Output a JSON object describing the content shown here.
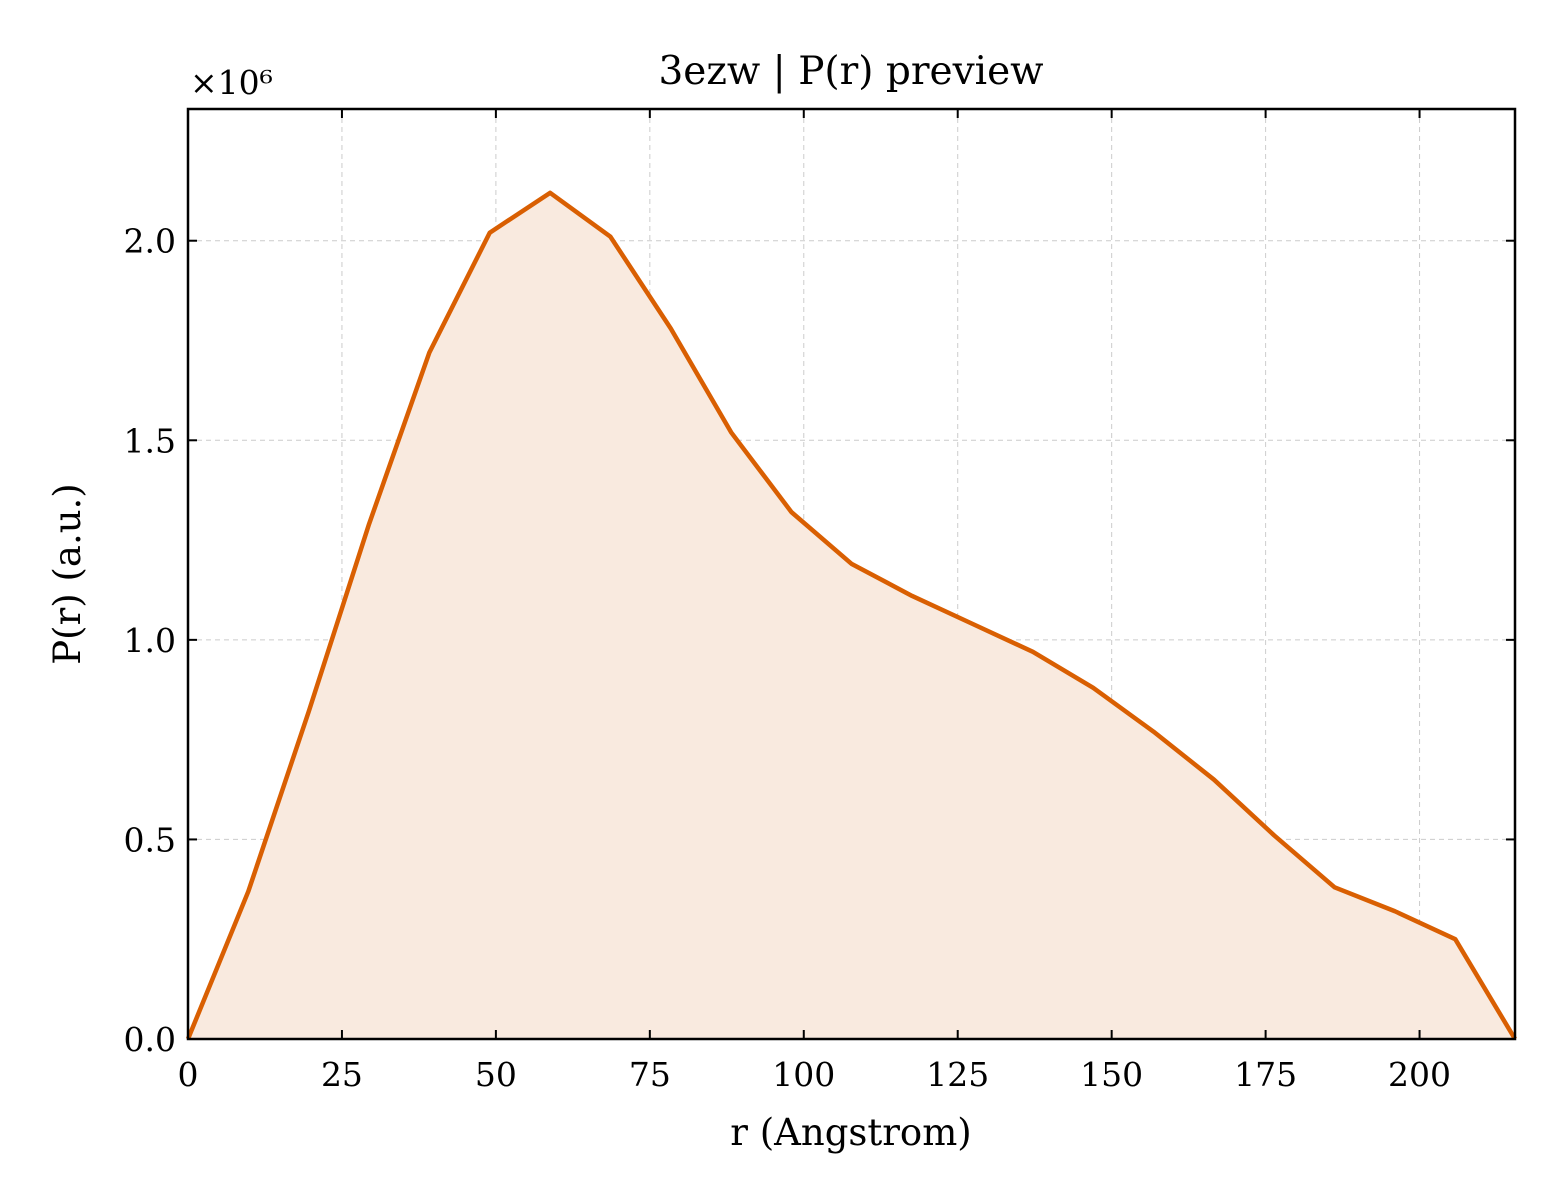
{
  "chart_data": {
    "type": "area",
    "title": "3ezw | P(r) preview",
    "xlabel": "r (Angstrom)",
    "ylabel": "P(r) (a.u.)",
    "y_multiplier_label": "×10⁶",
    "xlim": [
      0,
      215.5
    ],
    "ylim": [
      0,
      2.33
    ],
    "xticks": [
      0,
      25,
      50,
      75,
      100,
      125,
      150,
      175,
      200
    ],
    "xtick_labels": [
      "0",
      "25",
      "50",
      "75",
      "100",
      "125",
      "150",
      "175",
      "200"
    ],
    "yticks": [
      0.0,
      0.5,
      1.0,
      1.5,
      2.0
    ],
    "ytick_labels": [
      "0.0",
      "0.5",
      "1.0",
      "1.5",
      "2.0"
    ],
    "grid": true,
    "line_color": "#d95f02",
    "fill_color": "#f9eadf",
    "series": [
      {
        "x": [
          0,
          9.8,
          19.6,
          29.4,
          39.2,
          49.0,
          58.8,
          68.6,
          78.4,
          88.2,
          98.0,
          107.8,
          117.6,
          127.4,
          137.2,
          147.0,
          156.8,
          166.6,
          176.4,
          186.2,
          196.0,
          205.8,
          215.5
        ],
        "y": [
          0,
          0.37,
          0.82,
          1.29,
          1.72,
          2.02,
          2.12,
          2.01,
          1.78,
          1.52,
          1.32,
          1.19,
          1.11,
          1.04,
          0.97,
          0.88,
          0.77,
          0.65,
          0.51,
          0.38,
          0.32,
          0.25,
          0
        ]
      }
    ]
  }
}
